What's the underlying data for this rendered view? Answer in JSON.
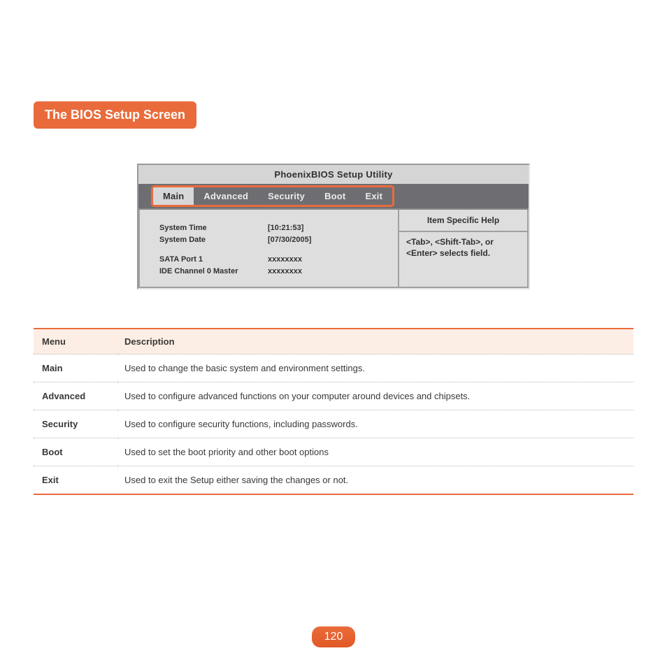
{
  "page": {
    "title": "The BIOS Setup Screen",
    "number": "120"
  },
  "colors": {
    "accent": "#e96b3c",
    "accent_dark": "#e15827",
    "table_head_bg": "#fdeee5",
    "bios_bar": "#6e6e72",
    "bios_bg": "#dedede",
    "bios_text": "#302f32"
  },
  "bios": {
    "title": "PhoenixBIOS Setup Utility",
    "menu": {
      "items": [
        {
          "label": "Main",
          "active": true
        },
        {
          "label": "Advanced",
          "active": false
        },
        {
          "label": "Security",
          "active": false
        },
        {
          "label": "Boot",
          "active": false
        },
        {
          "label": "Exit",
          "active": false
        }
      ]
    },
    "fields": [
      {
        "label": "System Time",
        "value": "[10:21:53]"
      },
      {
        "label": "System Date",
        "value": "[07/30/2005]"
      }
    ],
    "fields2": [
      {
        "label": "SATA Port 1",
        "value": "xxxxxxxx"
      },
      {
        "label": "IDE Channel 0 Master",
        "value": "xxxxxxxx"
      }
    ],
    "help": {
      "title": "Item Specific Help",
      "text": "<Tab>, <Shift-Tab>, or <Enter> selects field."
    }
  },
  "table": {
    "headers": {
      "menu": "Menu",
      "desc": "Description"
    },
    "rows": [
      {
        "menu": "Main",
        "desc": "Used to change the basic system and environment settings."
      },
      {
        "menu": "Advanced",
        "desc": "Used to configure advanced functions on your computer around devices and chipsets."
      },
      {
        "menu": "Security",
        "desc": "Used to configure security functions, including passwords."
      },
      {
        "menu": "Boot",
        "desc": "Used to set the boot priority and other boot options"
      },
      {
        "menu": "Exit",
        "desc": "Used to exit the Setup either saving the changes or not."
      }
    ]
  }
}
